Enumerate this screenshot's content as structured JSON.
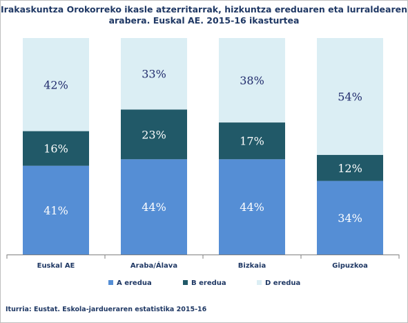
{
  "chart_data": {
    "type": "bar",
    "stacked": true,
    "title_lines": [
      "Irakaskuntza Orokorreko ikasle atzerritarrak, hizkuntza ereduaren eta lurraldearen",
      "arabera. Euskal AE. 2015-16 ikasturtea"
    ],
    "categories": [
      "Euskal AE",
      "Araba/Álava",
      "Bizkaia",
      "Gipuzkoa"
    ],
    "series": [
      {
        "name": "A eredua",
        "color": "#558ed5",
        "values": [
          41,
          44,
          44,
          34
        ],
        "labels": [
          "41%",
          "44%",
          "44%",
          "34%"
        ]
      },
      {
        "name": "B eredua",
        "color": "#215968",
        "values": [
          16,
          23,
          17,
          12
        ],
        "labels": [
          "16%",
          "23%",
          "17%",
          "12%"
        ]
      },
      {
        "name": "D eredua",
        "color": "#dbeef4",
        "values": [
          42,
          33,
          38,
          54
        ],
        "labels": [
          "42%",
          "33%",
          "38%",
          "54%"
        ]
      }
    ],
    "ylim": [
      0,
      100
    ],
    "grid": false,
    "legend_position": "bottom",
    "source": "Iturria: Eustat. Eskola-jardueraren estatistika 2015-16"
  }
}
